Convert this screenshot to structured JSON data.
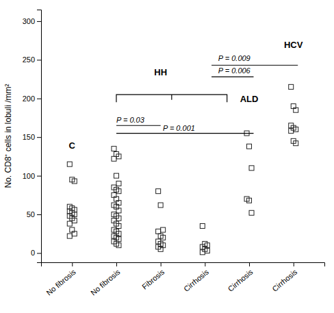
{
  "chart_data": {
    "type": "scatter",
    "ylabel": "No. CD8⁺ cells in lobuli /mm²",
    "xlim": [
      0.3,
      6.7
    ],
    "xticks": [
      {
        "value": 1,
        "label": "No fibrosis"
      },
      {
        "value": 2,
        "label": "No fibrosis"
      },
      {
        "value": 3,
        "label": "Fibrosis"
      },
      {
        "value": 4,
        "label": "Cirrhosis"
      },
      {
        "value": 5,
        "label": "Cirrhosis"
      },
      {
        "value": 6,
        "label": "Cirrhosis"
      }
    ],
    "ylim": [
      -12,
      315
    ],
    "yticks": [
      0,
      50,
      100,
      150,
      200,
      250,
      300
    ],
    "marker": "square",
    "color": "#222222",
    "values": [
      [
        115,
        95,
        93,
        60,
        58,
        56,
        54,
        52,
        50,
        48,
        45,
        42,
        38,
        30,
        25,
        22
      ],
      [
        135,
        128,
        125,
        122,
        100,
        90,
        85,
        82,
        80,
        75,
        70,
        65,
        62,
        60,
        55,
        50,
        48,
        45,
        42,
        38,
        35,
        30,
        28,
        25,
        22,
        20,
        18,
        15,
        12,
        10
      ],
      [
        80,
        62,
        30,
        28,
        22,
        20,
        15,
        12,
        10,
        8,
        5
      ],
      [
        35,
        12,
        10,
        8,
        5,
        3,
        1
      ],
      [
        155,
        138,
        110,
        70,
        68,
        52
      ],
      [
        215,
        190,
        185,
        165,
        162,
        160,
        158,
        145,
        142
      ]
    ],
    "group_labels": [
      {
        "text": "C",
        "x": 1.0,
        "y": 135
      },
      {
        "text": "HH",
        "x": 3.0,
        "y": 230
      },
      {
        "text": "ALD",
        "x": 5.0,
        "y": 195
      },
      {
        "text": "HCV",
        "x": 6.0,
        "y": 265
      }
    ],
    "annotations": [
      {
        "text": "P = 0.03",
        "x": 2.0,
        "y": 168
      },
      {
        "text": "P = 0.001",
        "x": 3.05,
        "y": 157
      },
      {
        "text": "P = 0.009",
        "x": 4.3,
        "y": 248
      },
      {
        "text": "P = 0.006",
        "x": 4.3,
        "y": 232
      }
    ],
    "significance_lines": [
      {
        "y": 165,
        "x1": 2.0,
        "x2": 3.0
      },
      {
        "y": 155,
        "x1": 2.0,
        "x2": 5.1
      },
      {
        "y": 243,
        "x1": 4.15,
        "x2": 6.1
      },
      {
        "y": 228,
        "x1": 4.15,
        "x2": 5.1
      }
    ],
    "bracket": {
      "x1": 2.0,
      "x2": 4.5,
      "y": 205
    }
  }
}
